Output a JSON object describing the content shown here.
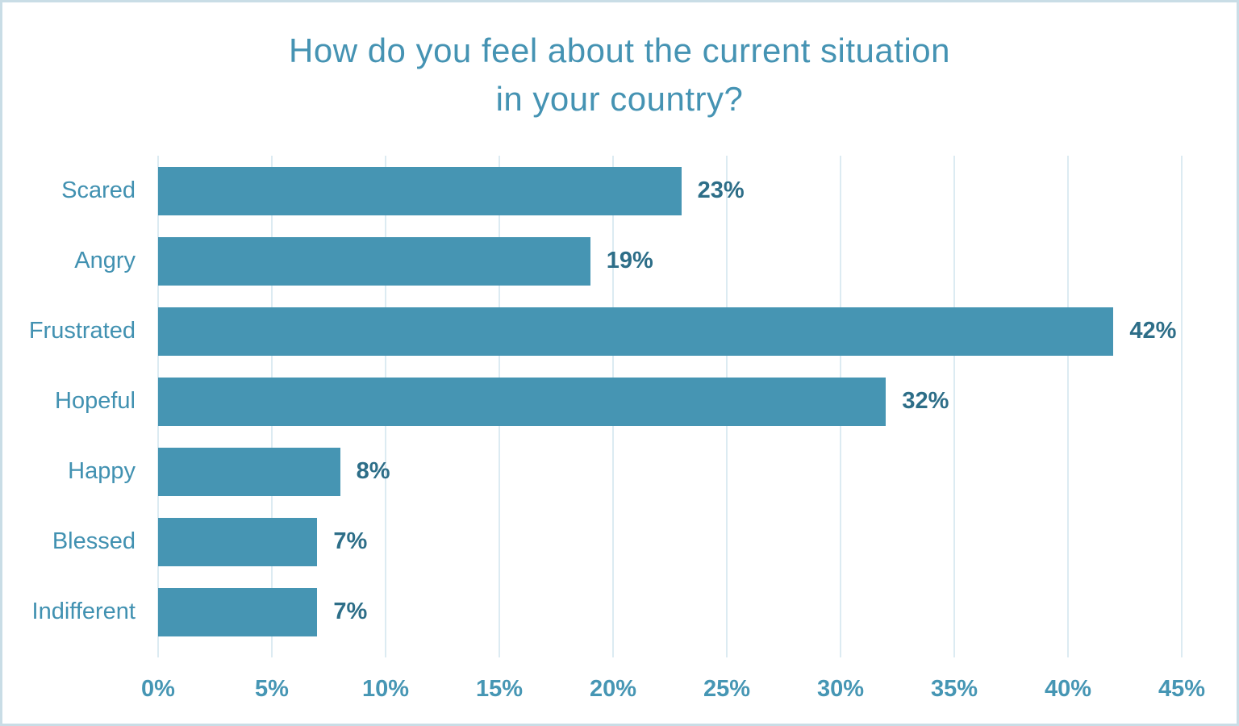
{
  "chart": {
    "title_lines": [
      "How do you feel about the current situation",
      "in your country?"
    ]
  },
  "chart_data": {
    "type": "bar",
    "orientation": "horizontal",
    "title": "How do you feel about the current situation in your country?",
    "categories": [
      "Scared",
      "Angry",
      "Frustrated",
      "Hopeful",
      "Happy",
      "Blessed",
      "Indifferent"
    ],
    "values": [
      23,
      19,
      42,
      32,
      8,
      7,
      7
    ],
    "value_labels": [
      "23%",
      "19%",
      "42%",
      "32%",
      "8%",
      "7%",
      "7%"
    ],
    "xlabel": "",
    "ylabel": "",
    "xlim": [
      0,
      45
    ],
    "x_tick_values": [
      0,
      5,
      10,
      15,
      20,
      25,
      30,
      35,
      40,
      45
    ],
    "x_tick_labels": [
      "0%",
      "5%",
      "10%",
      "15%",
      "20%",
      "25%",
      "30%",
      "35%",
      "40%",
      "45%"
    ],
    "grid": true,
    "legend": false,
    "colors": {
      "bar": "#4695b3",
      "title": "#4593b3",
      "category_label": "#4191b1",
      "value_label": "#2d6e88",
      "tick_label": "#4696b4",
      "gridline": "#dcebf2",
      "border": "#c9dde6",
      "background": "#ffffff"
    }
  }
}
